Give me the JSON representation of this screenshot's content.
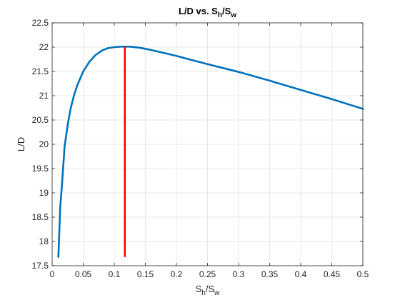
{
  "chart_data": {
    "type": "line",
    "title": {
      "base": "L/D vs. S",
      "sub1": "h",
      "mid": "/S",
      "sub2": "w"
    },
    "xlabel": {
      "base": "S",
      "sub1": "h",
      "mid": "/S",
      "sub2": "w"
    },
    "ylabel": "L/D",
    "xlim": [
      0,
      0.5
    ],
    "ylim": [
      17.5,
      22.5
    ],
    "xticks": [
      0,
      0.05,
      0.1,
      0.15,
      0.2,
      0.25,
      0.3,
      0.35,
      0.4,
      0.45,
      0.5
    ],
    "xtick_labels": [
      "0",
      "0.05",
      "0.1",
      "0.15",
      "0.2",
      "0.25",
      "0.3",
      "0.35",
      "0.4",
      "0.45",
      "0.5"
    ],
    "yticks": [
      17.5,
      18,
      18.5,
      19,
      19.5,
      20,
      20.5,
      21,
      21.5,
      22,
      22.5
    ],
    "ytick_labels": [
      "17.5",
      "18",
      "18.5",
      "19",
      "19.5",
      "20",
      "20.5",
      "21",
      "21.5",
      "22",
      "22.5"
    ],
    "grid": true,
    "series": [
      {
        "color": "#0072BD",
        "x": [
          0.01,
          0.013,
          0.016,
          0.02,
          0.025,
          0.03,
          0.035,
          0.04,
          0.05,
          0.06,
          0.07,
          0.08,
          0.09,
          0.1,
          0.11,
          0.117,
          0.125,
          0.14,
          0.16,
          0.18,
          0.2,
          0.22,
          0.25,
          0.3,
          0.35,
          0.4,
          0.45,
          0.5
        ],
        "y": [
          17.68,
          18.7,
          19.2,
          19.95,
          20.4,
          20.75,
          21.0,
          21.2,
          21.5,
          21.7,
          21.84,
          21.93,
          21.98,
          22.0,
          22.01,
          22.01,
          22.01,
          21.99,
          21.94,
          21.88,
          21.82,
          21.75,
          21.65,
          21.49,
          21.31,
          21.12,
          20.93,
          20.73
        ]
      }
    ],
    "marker_line": {
      "color": "#FF0000",
      "x": 0.117,
      "y_from": 17.68,
      "y_to": 22.01
    }
  }
}
